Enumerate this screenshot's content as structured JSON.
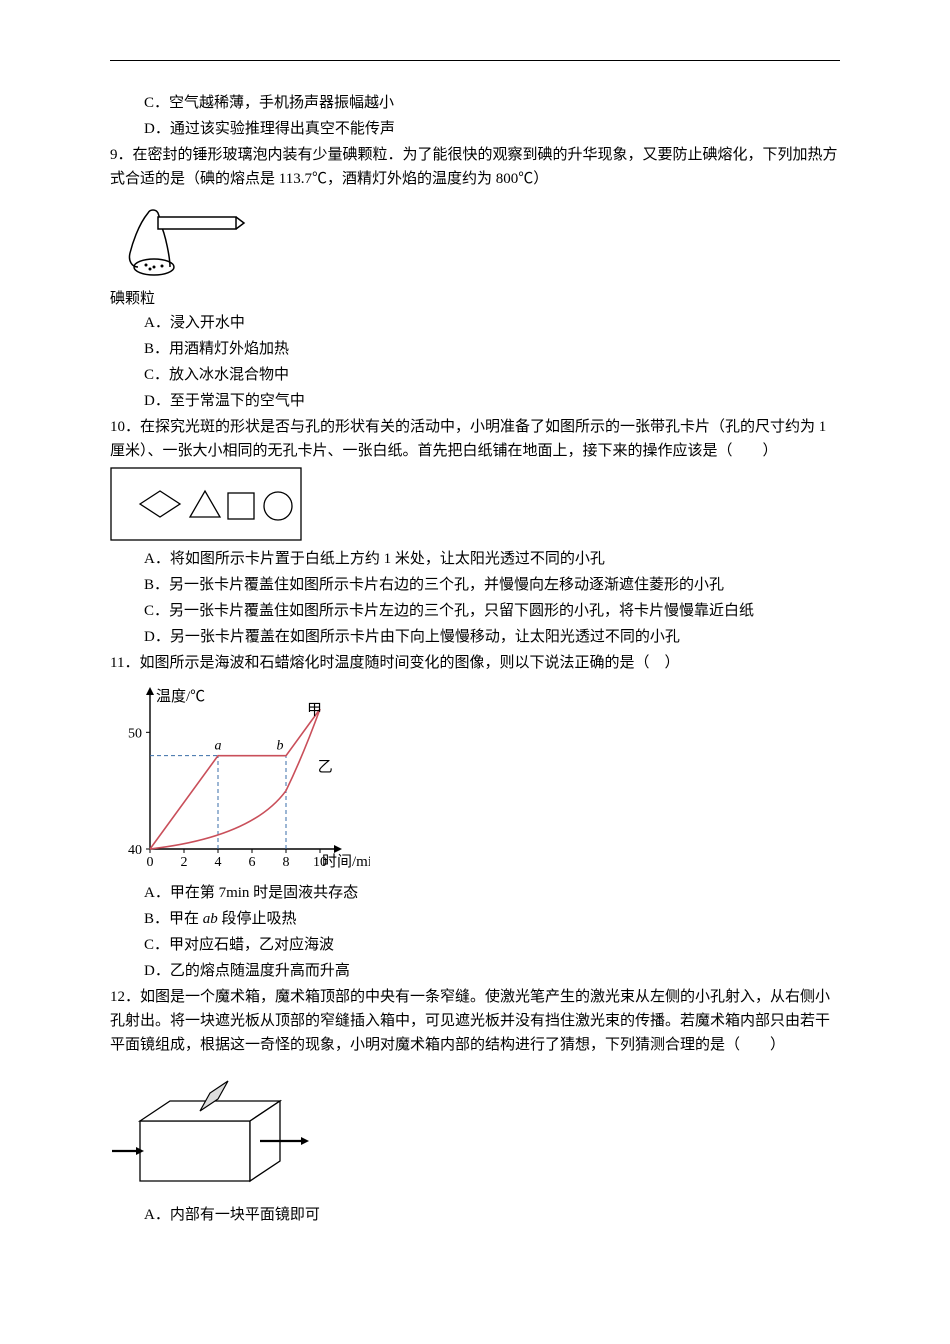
{
  "optC_cont": "C．空气越稀薄，手机扬声器振幅越小",
  "optD_cont": "D．通过该实验推理得出真空不能传声",
  "q9": {
    "stem": "9．在密封的锤形玻璃泡内装有少量碘颗粒．为了能很快的观察到碘的升华现象，又要防止碘熔化，下列加热方式合适的是（碘的熔点是 113.7℃，酒精灯外焰的温度约为 800℃）",
    "caption": "碘颗粒",
    "A": "A．浸入开水中",
    "B": "B．用酒精灯外焰加热",
    "C": "C．放入冰水混合物中",
    "D": "D．至于常温下的空气中"
  },
  "q10": {
    "stem": "10．在探究光斑的形状是否与孔的形状有关的活动中，小明准备了如图所示的一张带孔卡片（孔的尺寸约为 1 厘米）、一张大小相同的无孔卡片、一张白纸。首先把白纸铺在地面上，接下来的操作应该是（　　）",
    "A": "A．将如图所示卡片置于白纸上方约 1 米处，让太阳光透过不同的小孔",
    "B": "B．另一张卡片覆盖住如图所示卡片右边的三个孔，并慢慢向左移动逐渐遮住菱形的小孔",
    "C": "C．另一张卡片覆盖住如图所示卡片左边的三个孔，只留下圆形的小孔，将卡片慢慢靠近白纸",
    "D": "D．另一张卡片覆盖在如图所示卡片由下向上慢慢移动，让太阳光透过不同的小孔"
  },
  "q11": {
    "stem": "11．如图所示是海波和石蜡熔化时温度随时间变化的图像，则以下说法正确的是（　）",
    "A": "A．甲在第 7min 时是固液共存态",
    "B_pre": "B．甲在 ",
    "B_ital": "ab",
    "B_post": " 段停止吸热",
    "C": "C．甲对应石蜡，乙对应海波",
    "D": "D．乙的熔点随温度升高而升高",
    "chart": {
      "ylabel": "温度/℃",
      "xlabel": "时间/min",
      "y_ticks": [
        40,
        50
      ],
      "x_ticks": [
        0,
        2,
        4,
        6,
        8,
        10
      ],
      "label_a": "a",
      "label_b": "b",
      "label_jia": "甲",
      "label_yi": "乙",
      "axis_color": "#000000",
      "curve_color": "#c94f5a",
      "dash_color": "#3a6ea8",
      "background": "#ffffff"
    }
  },
  "q12": {
    "stem": "12．如图是一个魔术箱，魔术箱顶部的中央有一条窄缝。使激光笔产生的激光束从左侧的小孔射入，从右侧小孔射出。将一块遮光板从顶部的窄缝插入箱中，可见遮光板并没有挡住激光束的传播。若魔术箱内部只由若干平面镜组成，根据这一奇怪的现象，小明对魔术箱内部的结构进行了猜想，下列猜测合理的是（　　）",
    "A": "A．内部有一块平面镜即可"
  }
}
